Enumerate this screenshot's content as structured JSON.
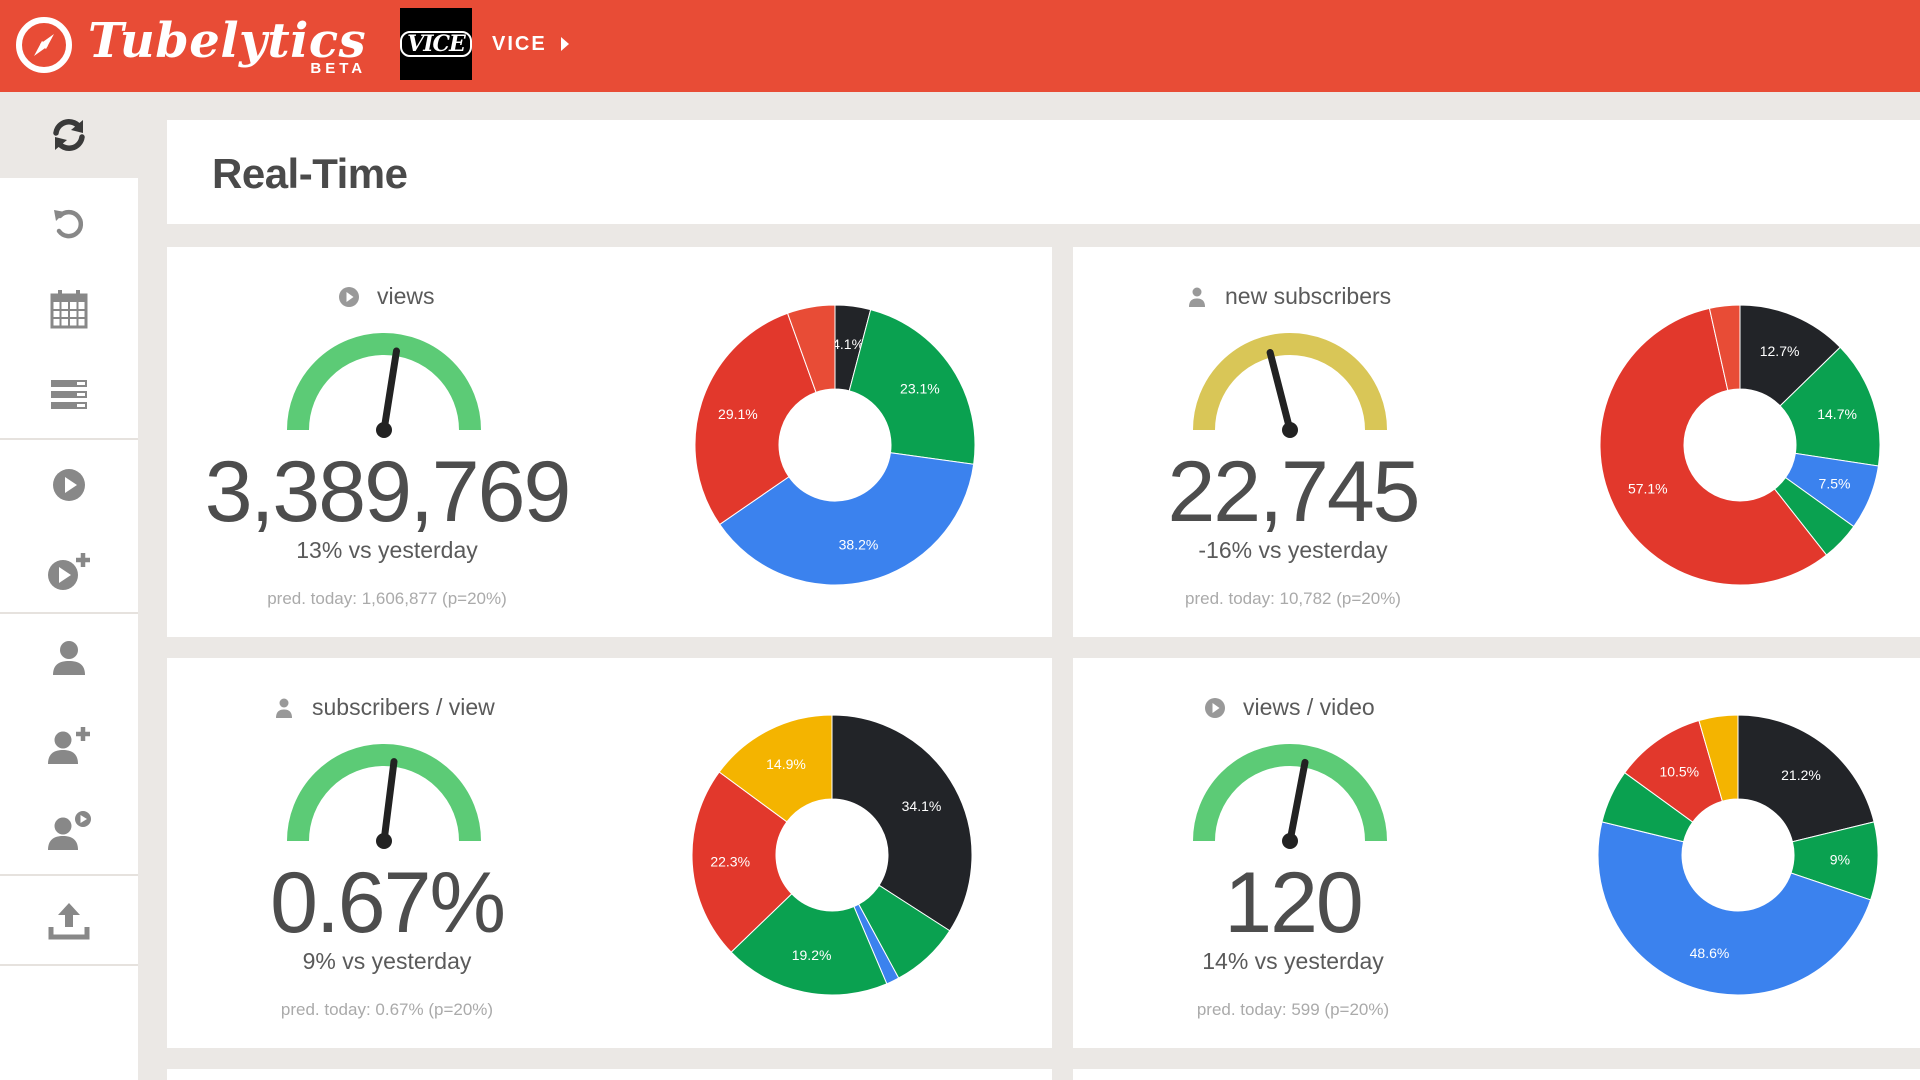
{
  "app": {
    "name": "Tubelytics",
    "badge": "BETA"
  },
  "channel": {
    "logo_text": "VICE",
    "name": "VICE"
  },
  "colors": {
    "brand": "#e84c36",
    "gauge_good": "#5ccb76",
    "gauge_warn": "#d9c657",
    "needle": "#222222"
  },
  "sidebar": {
    "items": [
      {
        "icon": "refresh-icon",
        "active": true
      },
      {
        "icon": "undo-icon"
      },
      {
        "icon": "calendar-icon"
      },
      {
        "icon": "list-icon"
      },
      {
        "icon": "play-icon"
      },
      {
        "icon": "play-plus-icon"
      },
      {
        "icon": "user-icon"
      },
      {
        "icon": "user-plus-icon"
      },
      {
        "icon": "user-play-icon"
      },
      {
        "icon": "upload-icon"
      }
    ]
  },
  "page": {
    "title": "Real-Time"
  },
  "metrics": [
    {
      "label": "views",
      "icon": "play-icon",
      "value": "3,389,769",
      "change": "13% vs yesterday",
      "pred": "pred. today: 1,606,877 (p=20%)",
      "gauge_level": 0.55,
      "gauge_color": "#5ccb76"
    },
    {
      "label": "new subscribers",
      "icon": "user-icon",
      "value": "22,745",
      "change": "-16% vs yesterday",
      "pred": "pred. today: 10,782 (p=20%)",
      "gauge_level": 0.42,
      "gauge_color": "#d9c657"
    },
    {
      "label": "subscribers / view",
      "icon": "user-icon",
      "value": "0.67%",
      "change": "9% vs yesterday",
      "pred": "pred. today: 0.67% (p=20%)",
      "gauge_level": 0.54,
      "gauge_color": "#5ccb76"
    },
    {
      "label": "views / video",
      "icon": "play-icon",
      "value": "120",
      "change": "14% vs yesterday",
      "pred": "pred. today: 599 (p=20%)",
      "gauge_level": 0.56,
      "gauge_color": "#5ccb76"
    }
  ],
  "chart_data": [
    {
      "type": "pie",
      "slices": [
        {
          "value": 4.1,
          "label": "4.1%",
          "color": "#222428"
        },
        {
          "value": 23.1,
          "label": "23.1%",
          "color": "#0aa150"
        },
        {
          "value": 38.2,
          "label": "38.2%",
          "color": "#3b82ee"
        },
        {
          "value": 29.1,
          "label": "29.1%",
          "color": "#e2382c"
        },
        {
          "value": 5.5,
          "label": "",
          "color": "#e84c36"
        }
      ]
    },
    {
      "type": "pie",
      "slices": [
        {
          "value": 12.7,
          "label": "12.7%",
          "color": "#222428"
        },
        {
          "value": 14.7,
          "label": "14.7%",
          "color": "#0aa150"
        },
        {
          "value": 7.5,
          "label": "7.5%",
          "color": "#3b82ee"
        },
        {
          "value": 4.5,
          "label": "",
          "color": "#0aa150"
        },
        {
          "value": 57.1,
          "label": "57.1%",
          "color": "#e2382c"
        },
        {
          "value": 3.5,
          "label": "",
          "color": "#e84c36"
        }
      ]
    },
    {
      "type": "pie",
      "slices": [
        {
          "value": 34.1,
          "label": "34.1%",
          "color": "#222428"
        },
        {
          "value": 8.0,
          "label": "",
          "color": "#0aa150"
        },
        {
          "value": 1.5,
          "label": "",
          "color": "#3b82ee"
        },
        {
          "value": 19.2,
          "label": "19.2%",
          "color": "#0aa150"
        },
        {
          "value": 22.3,
          "label": "22.3%",
          "color": "#e2382c"
        },
        {
          "value": 14.9,
          "label": "14.9%",
          "color": "#f4b400"
        }
      ]
    },
    {
      "type": "pie",
      "slices": [
        {
          "value": 21.2,
          "label": "21.2%",
          "color": "#222428"
        },
        {
          "value": 9.0,
          "label": "9%",
          "color": "#0aa150"
        },
        {
          "value": 48.6,
          "label": "48.6%",
          "color": "#3b82ee"
        },
        {
          "value": 6.2,
          "label": "",
          "color": "#0aa150"
        },
        {
          "value": 10.5,
          "label": "10.5%",
          "color": "#e2382c"
        },
        {
          "value": 4.5,
          "label": "",
          "color": "#f4b400"
        }
      ]
    }
  ]
}
